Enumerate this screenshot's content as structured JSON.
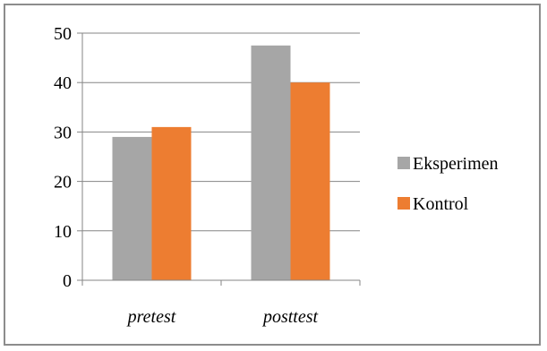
{
  "chart_data": {
    "type": "bar",
    "categories": [
      "pretest",
      "posttest"
    ],
    "series": [
      {
        "name": "Eksperimen",
        "values": [
          29,
          47.5
        ],
        "color": "#a6a6a6"
      },
      {
        "name": "Kontrol",
        "values": [
          31,
          40
        ],
        "color": "#ed7d31"
      }
    ],
    "ylim": [
      0,
      50
    ],
    "yticks": [
      0,
      10,
      20,
      30,
      40,
      50
    ],
    "grid": true,
    "legend": "right"
  }
}
